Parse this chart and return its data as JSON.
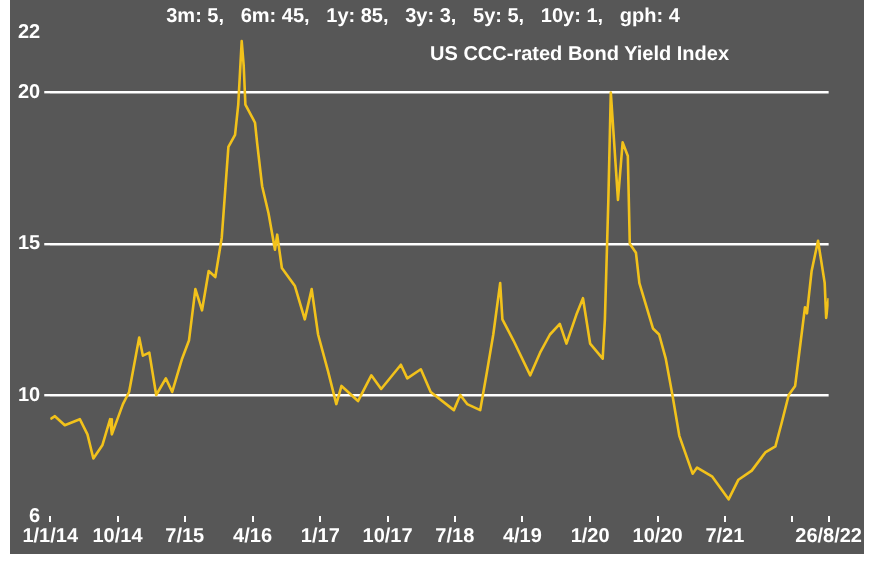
{
  "chart_data": {
    "type": "line",
    "title": "3m: 5,   6m: 45,   1y: 85,   3y: 3,   5y: 5,   10y: 1,   gph: 4",
    "subtitle": "US CCC-rated Bond Yield Index",
    "x": [
      "2014-01-01",
      "2014-01-20",
      "2014-03-01",
      "2014-05-01",
      "2014-06-01",
      "2014-06-25",
      "2014-08-01",
      "2014-09-01",
      "2014-09-08",
      "2014-10-23",
      "2014-11-17",
      "2014-12-28",
      "2015-01-12",
      "2015-02-07",
      "2015-03-07",
      "2015-04-15",
      "2015-05-11",
      "2015-06-20",
      "2015-07-18",
      "2015-08-13",
      "2015-09-09",
      "2015-10-06",
      "2015-11-02",
      "2015-11-28",
      "2015-12-25",
      "2016-01-21",
      "2016-02-03",
      "2016-02-17",
      "2016-02-25",
      "2016-03-03",
      "2016-04-11",
      "2016-04-20",
      "2016-05-10",
      "2016-06-05",
      "2016-07-01",
      "2016-07-10",
      "2016-07-29",
      "2016-09-20",
      "2016-10-30",
      "2016-11-27",
      "2016-12-23",
      "2017-02-01",
      "2017-03-07",
      "2017-03-28",
      "2017-06-03",
      "2017-07-27",
      "2017-09-05",
      "2017-11-24",
      "2017-12-20",
      "2018-02-13",
      "2018-03-25",
      "2018-06-27",
      "2018-07-23",
      "2018-08-20",
      "2018-10-12",
      "2018-11-08",
      "2018-12-04",
      "2019-01-01",
      "2019-01-10",
      "2019-02-24",
      "2019-05-03",
      "2019-06-12",
      "2019-07-22",
      "2019-08-31",
      "2019-09-27",
      "2019-11-06",
      "2019-12-03",
      "2020-01-01",
      "2020-02-21",
      "2020-03-01",
      "2020-03-15",
      "2020-03-25",
      "2020-04-23",
      "2020-05-12",
      "2020-06-02",
      "2020-06-10",
      "2020-07-05",
      "2020-07-19",
      "2020-09-12",
      "2020-10-07",
      "2020-11-03",
      "2020-11-30",
      "2020-12-28",
      "2021-02-20",
      "2021-03-10",
      "2021-05-11",
      "2021-07-16",
      "2021-08-25",
      "2021-10-18",
      "2021-12-12",
      "2022-01-22",
      "2022-02-17",
      "2022-03-17",
      "2022-04-12",
      "2022-05-22",
      "2022-05-30",
      "2022-06-18",
      "2022-07-14",
      "2022-08-10",
      "2022-08-16",
      "2022-08-26"
    ],
    "values": [
      9.2,
      9.3,
      9.0,
      9.2,
      8.7,
      7.9,
      8.35,
      9.2,
      8.7,
      9.7,
      10.1,
      11.9,
      11.3,
      11.4,
      10.0,
      10.55,
      10.1,
      11.2,
      11.8,
      13.5,
      12.8,
      14.1,
      13.9,
      15.2,
      18.2,
      18.6,
      19.6,
      21.7,
      20.9,
      19.6,
      19.0,
      18.3,
      16.9,
      16.0,
      14.8,
      15.3,
      14.2,
      13.6,
      12.5,
      13.5,
      12.0,
      10.8,
      9.7,
      10.3,
      9.8,
      10.65,
      10.2,
      11.0,
      10.55,
      10.85,
      10.1,
      9.5,
      10.0,
      9.7,
      9.5,
      10.75,
      12.0,
      13.7,
      12.5,
      11.8,
      10.65,
      11.4,
      12.0,
      12.35,
      11.7,
      12.65,
      13.2,
      11.7,
      11.2,
      12.5,
      16.45,
      20.0,
      16.45,
      18.35,
      17.9,
      15.0,
      14.7,
      13.7,
      12.2,
      12.0,
      11.2,
      10.0,
      8.65,
      7.4,
      7.6,
      7.3,
      6.55,
      7.2,
      7.5,
      8.1,
      8.3,
      9.1,
      10.0,
      10.3,
      12.9,
      12.7,
      14.1,
      15.1,
      13.7,
      12.55,
      13.2
    ],
    "color": "#f2c21b",
    "xlim": [
      "2014-01-01",
      "2022-08-26"
    ],
    "xticks": [
      {
        "value": "2014-01-01",
        "label": "1/1/14"
      },
      {
        "value": "2014-10-01",
        "label": "10/14"
      },
      {
        "value": "2015-07-01",
        "label": "7/15"
      },
      {
        "value": "2016-04-01",
        "label": "4/16"
      },
      {
        "value": "2017-01-01",
        "label": "1/17"
      },
      {
        "value": "2017-10-01",
        "label": "10/17"
      },
      {
        "value": "2018-07-01",
        "label": "7/18"
      },
      {
        "value": "2019-04-01",
        "label": "4/19"
      },
      {
        "value": "2020-01-01",
        "label": "1/20"
      },
      {
        "value": "2020-10-01",
        "label": "10/20"
      },
      {
        "value": "2021-07-01",
        "label": "7/21"
      },
      {
        "value": "2022-04-01",
        "label": null
      },
      {
        "value": "2022-08-26",
        "label": "26/8/22"
      }
    ],
    "ylim": [
      6,
      22
    ],
    "yticks": [
      6,
      10,
      15,
      20,
      22
    ],
    "grid": "y"
  }
}
